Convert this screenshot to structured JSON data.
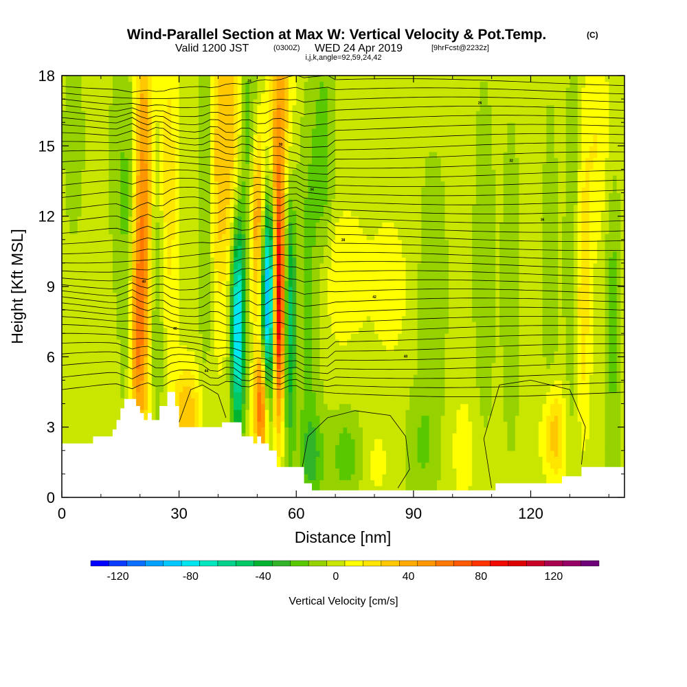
{
  "chart_data": {
    "type": "heatmap",
    "title": "Wind-Parallel Section at Max W: Vertical Velocity & Pot.Temp.",
    "copyright": "(C)",
    "subtitle_main": "Valid 1200 JST",
    "subtitle_utc": "(0300Z)",
    "subtitle_date": "WED 24 Apr 2019",
    "subtitle_fcst": "[9hrFcst@2232z]",
    "subtitle_ijk": "i,j,k,angle=92,59,24,42",
    "xlabel": "Distance [nm]",
    "ylabel": "Height [Kft MSL]",
    "xlim": [
      0,
      144
    ],
    "ylim": [
      0,
      18
    ],
    "x_ticks": [
      0,
      30,
      60,
      90,
      120
    ],
    "y_ticks": [
      0,
      3,
      6,
      9,
      12,
      15,
      18
    ],
    "colorbar": {
      "label": "Vertical Velocity [cm/s]",
      "ticks": [
        -120,
        -80,
        -40,
        0,
        40,
        80,
        120
      ],
      "bins": [
        -135,
        -125,
        -115,
        -105,
        -95,
        -85,
        -75,
        -65,
        -55,
        -45,
        -35,
        -25,
        -15,
        -5,
        5,
        15,
        25,
        35,
        45,
        55,
        65,
        75,
        85,
        95,
        105,
        115,
        125,
        135,
        145
      ],
      "colors": [
        "#0000ff",
        "#0a3cff",
        "#0a6eff",
        "#00a0ff",
        "#00c8ff",
        "#00e6f0",
        "#00e6be",
        "#00d28c",
        "#00c864",
        "#00b432",
        "#32b428",
        "#5ac800",
        "#96d200",
        "#c8e600",
        "#ffff00",
        "#ffe600",
        "#ffc800",
        "#ffaa00",
        "#ff9600",
        "#ff7800",
        "#ff5a00",
        "#ff3200",
        "#f00a00",
        "#dc0000",
        "#c80028",
        "#aa0050",
        "#960064",
        "#6e0078"
      ]
    },
    "velocity_field": {
      "background": 0,
      "anomalies": [
        {
          "x": 3,
          "y": 15.2,
          "sx": 2,
          "sy": 3,
          "w": -12
        },
        {
          "x": 14,
          "y": 14,
          "sx": 1.5,
          "sy": 4,
          "w": -10
        },
        {
          "x": 17,
          "y": 11.5,
          "sx": 1.5,
          "sy": 6,
          "w": -18
        },
        {
          "x": 21,
          "y": 11.5,
          "sx": 1.8,
          "sy": 6.5,
          "w": 55
        },
        {
          "x": 19,
          "y": 7,
          "sx": 1.2,
          "sy": 3,
          "w": 40
        },
        {
          "x": 24,
          "y": 9,
          "sx": 1.5,
          "sy": 5,
          "w": -28
        },
        {
          "x": 27,
          "y": 13,
          "sx": 2,
          "sy": 5,
          "w": 22
        },
        {
          "x": 32,
          "y": 3.6,
          "sx": 2.5,
          "sy": 1.4,
          "w": 35
        },
        {
          "x": 37,
          "y": 14,
          "sx": 1.5,
          "sy": 6,
          "w": -22
        },
        {
          "x": 40,
          "y": 14.5,
          "sx": 2,
          "sy": 5,
          "w": 30
        },
        {
          "x": 44,
          "y": 15.5,
          "sx": 2,
          "sy": 4,
          "w": 28
        },
        {
          "x": 45,
          "y": 7.3,
          "sx": 1.2,
          "sy": 3.2,
          "w": -90
        },
        {
          "x": 48,
          "y": 14.5,
          "sx": 2,
          "sy": 4,
          "w": -32
        },
        {
          "x": 50,
          "y": 12,
          "sx": 1.5,
          "sy": 3,
          "w": 60
        },
        {
          "x": 51,
          "y": 4,
          "sx": 1.2,
          "sy": 1.8,
          "w": 70
        },
        {
          "x": 53,
          "y": 8.5,
          "sx": 1.3,
          "sy": 3,
          "w": -120
        },
        {
          "x": 55.5,
          "y": 8.5,
          "sx": 1.3,
          "sy": 3.5,
          "w": 120
        },
        {
          "x": 56,
          "y": 16.5,
          "sx": 2,
          "sy": 3,
          "w": 40
        },
        {
          "x": 58,
          "y": 8,
          "sx": 1.2,
          "sy": 4,
          "w": -60
        },
        {
          "x": 63,
          "y": 9,
          "sx": 2,
          "sy": 5,
          "w": -20
        },
        {
          "x": 67,
          "y": 14.5,
          "sx": 2,
          "sy": 4,
          "w": -20
        },
        {
          "x": 64,
          "y": 1.7,
          "sx": 2.5,
          "sy": 1.5,
          "w": -25
        },
        {
          "x": 71,
          "y": 9.5,
          "sx": 5,
          "sy": 2,
          "w": 15
        },
        {
          "x": 73,
          "y": 1.8,
          "sx": 3,
          "sy": 1.3,
          "w": -22
        },
        {
          "x": 80,
          "y": 1.5,
          "sx": 3,
          "sy": 1.2,
          "w": 8
        },
        {
          "x": 84,
          "y": 9,
          "sx": 3,
          "sy": 2,
          "w": 12
        },
        {
          "x": 92,
          "y": 2,
          "sx": 3,
          "sy": 2,
          "w": -15
        },
        {
          "x": 95,
          "y": 9,
          "sx": 2.5,
          "sy": 4,
          "w": -15
        },
        {
          "x": 103,
          "y": 2,
          "sx": 2.5,
          "sy": 1.8,
          "w": 10
        },
        {
          "x": 108,
          "y": 10,
          "sx": 2,
          "sy": 6,
          "w": -12
        },
        {
          "x": 115,
          "y": 9,
          "sx": 2,
          "sy": 6,
          "w": -10
        },
        {
          "x": 125,
          "y": 9,
          "sx": 1.5,
          "sy": 6,
          "w": -12
        },
        {
          "x": 126,
          "y": 2.7,
          "sx": 2,
          "sy": 1.5,
          "w": 35
        },
        {
          "x": 131,
          "y": 10,
          "sx": 1.5,
          "sy": 6,
          "w": -20
        },
        {
          "x": 133,
          "y": 8.5,
          "sx": 1.5,
          "sy": 4,
          "w": 28
        },
        {
          "x": 137,
          "y": 15,
          "sx": 3,
          "sy": 3,
          "w": 15
        },
        {
          "x": 141,
          "y": 8,
          "sx": 1.5,
          "sy": 5,
          "w": -20
        }
      ]
    },
    "terrain": [
      [
        0,
        2.3
      ],
      [
        8,
        2.3
      ],
      [
        8,
        2.6
      ],
      [
        13,
        2.6
      ],
      [
        13,
        2.9
      ],
      [
        14,
        2.9
      ],
      [
        14,
        3.3
      ],
      [
        15,
        3.3
      ],
      [
        15,
        3.8
      ],
      [
        16,
        3.8
      ],
      [
        16,
        4.2
      ],
      [
        19,
        4.2
      ],
      [
        19,
        3.9
      ],
      [
        20,
        3.9
      ],
      [
        20,
        3.6
      ],
      [
        21,
        3.6
      ],
      [
        21,
        3.3
      ],
      [
        22,
        3.3
      ],
      [
        22,
        3.6
      ],
      [
        23,
        3.6
      ],
      [
        23,
        3.3
      ],
      [
        25,
        3.3
      ],
      [
        25,
        3.9
      ],
      [
        27,
        3.9
      ],
      [
        27,
        4.5
      ],
      [
        29,
        4.5
      ],
      [
        29,
        3.9
      ],
      [
        30,
        3.9
      ],
      [
        30,
        3.0
      ],
      [
        41,
        3.0
      ],
      [
        41,
        3.2
      ],
      [
        46,
        3.2
      ],
      [
        46,
        2.6
      ],
      [
        49,
        2.6
      ],
      [
        49,
        2.3
      ],
      [
        50,
        2.3
      ],
      [
        50,
        2.6
      ],
      [
        51,
        2.6
      ],
      [
        51,
        2.3
      ],
      [
        53,
        2.3
      ],
      [
        53,
        2.0
      ],
      [
        55,
        2.0
      ],
      [
        55,
        1.3
      ],
      [
        62,
        1.3
      ],
      [
        62,
        0.6
      ],
      [
        64,
        0.6
      ],
      [
        64,
        0.3
      ],
      [
        111,
        0.3
      ],
      [
        111,
        0.6
      ],
      [
        128,
        0.6
      ],
      [
        128,
        0.9
      ],
      [
        133,
        0.9
      ],
      [
        133,
        1.3
      ],
      [
        144,
        1.3
      ]
    ],
    "theta_contour_labels": [
      "44",
      "40",
      "40",
      "42",
      "40",
      "38",
      "36",
      "34",
      "32",
      "30",
      "26",
      "24",
      "22",
      "20",
      "18"
    ]
  }
}
